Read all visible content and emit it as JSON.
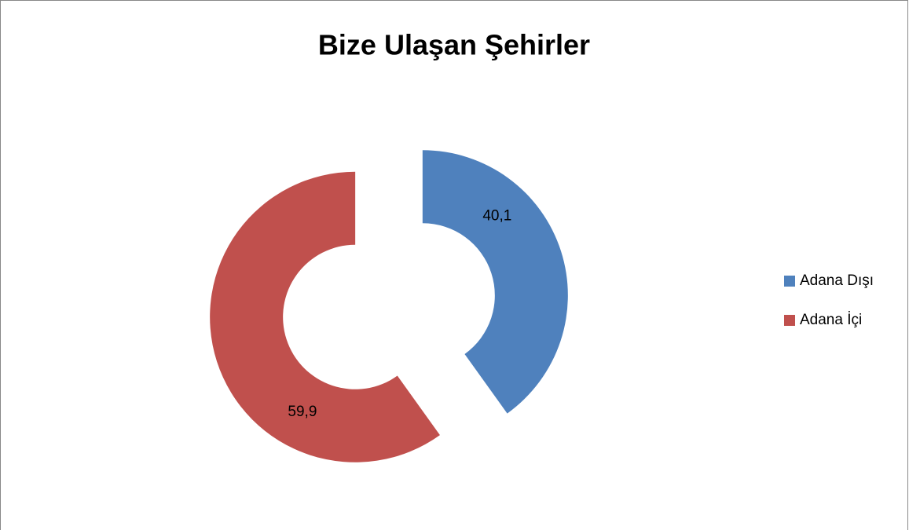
{
  "chart_data": {
    "type": "pie",
    "title": "Bize Ulaşan Şehirler",
    "categories": [
      "Adana Dışı",
      "Adana İçi"
    ],
    "values": [
      40.1,
      59.9
    ],
    "value_labels": [
      "40,1",
      "59,9"
    ],
    "colors": [
      "#4f81bd",
      "#c0504d"
    ],
    "legend": "right"
  }
}
